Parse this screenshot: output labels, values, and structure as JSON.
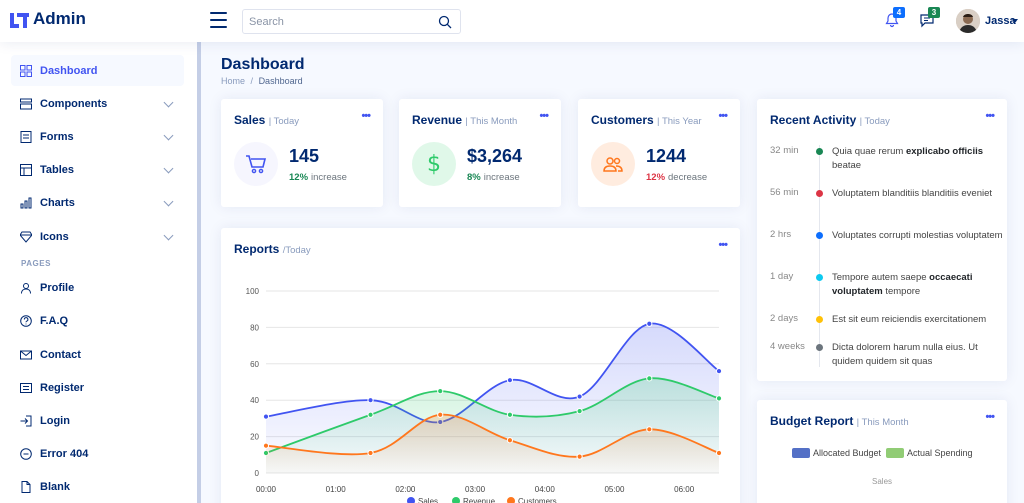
{
  "header": {
    "logo_text": "Admin",
    "search_placeholder": "Search",
    "notifications_count": "4",
    "messages_count": "3",
    "user_name": "Jassa"
  },
  "sidebar": {
    "items": [
      {
        "label": "Dashboard",
        "icon": "grid-icon",
        "active": true
      },
      {
        "label": "Components",
        "icon": "menu-icon",
        "expandable": true
      },
      {
        "label": "Forms",
        "icon": "journal-icon",
        "expandable": true
      },
      {
        "label": "Tables",
        "icon": "layout-icon",
        "expandable": true
      },
      {
        "label": "Charts",
        "icon": "bar-chart-icon",
        "expandable": true
      },
      {
        "label": "Icons",
        "icon": "gem-icon",
        "expandable": true
      }
    ],
    "pages_heading": "PAGES",
    "pages": [
      {
        "label": "Profile",
        "icon": "person-icon"
      },
      {
        "label": "F.A.Q",
        "icon": "question-icon"
      },
      {
        "label": "Contact",
        "icon": "envelope-icon"
      },
      {
        "label": "Register",
        "icon": "card-list-icon"
      },
      {
        "label": "Login",
        "icon": "login-icon"
      },
      {
        "label": "Error 404",
        "icon": "dash-circle-icon"
      },
      {
        "label": "Blank",
        "icon": "file-icon"
      }
    ]
  },
  "page": {
    "title": "Dashboard",
    "breadcrumb_home": "Home",
    "breadcrumb_sep": "/",
    "breadcrumb_current": "Dashboard"
  },
  "cards": {
    "sales": {
      "title": "Sales",
      "period": "| Today",
      "value": "145",
      "pct": "12%",
      "label": "increase",
      "color": "#4154f1"
    },
    "revenue": {
      "title": "Revenue",
      "period": "| This Month",
      "value": "$3,264",
      "pct": "8%",
      "label": "increase",
      "color": "#2eca6a"
    },
    "customers": {
      "title": "Customers",
      "period": "| This Year",
      "value": "1244",
      "pct": "12%",
      "label": "decrease",
      "color": "#ff771d"
    }
  },
  "more_dots": "•••",
  "reports": {
    "title": "Reports",
    "period": "/Today"
  },
  "recent_activity": {
    "title": "Recent Activity",
    "period": "| Today",
    "items": [
      {
        "time": "32 min",
        "text": "Quia quae rerum ",
        "bold": "explicabo officiis",
        "tail": " beatae",
        "color": "#198754"
      },
      {
        "time": "56 min",
        "text": "Voluptatem blanditiis blanditiis eveniet",
        "bold": "",
        "tail": "",
        "color": "#dc3545"
      },
      {
        "time": "2 hrs",
        "text": "Voluptates corrupti molestias voluptatem",
        "bold": "",
        "tail": "",
        "color": "#0d6efd"
      },
      {
        "time": "1 day",
        "text": "Tempore autem saepe ",
        "bold": "occaecati voluptatem",
        "tail": " tempore",
        "color": "#0dcaf0"
      },
      {
        "time": "2 days",
        "text": "Est sit eum reiciendis exercitationem",
        "bold": "",
        "tail": "",
        "color": "#ffc107"
      },
      {
        "time": "4 weeks",
        "text": "Dicta dolorem harum nulla eius. Ut quidem quidem sit quas",
        "bold": "",
        "tail": "",
        "color": "#6c757d"
      }
    ]
  },
  "budget": {
    "title": "Budget Report",
    "period": "| This Month",
    "legend": [
      {
        "name": "Allocated Budget",
        "color": "#5470c6"
      },
      {
        "name": "Actual Spending",
        "color": "#91cc75"
      }
    ],
    "radar_label": "Sales"
  },
  "chart_data": {
    "type": "area",
    "x": [
      "00:00",
      "01:00",
      "02:00",
      "03:00",
      "04:00",
      "05:00",
      "06:00"
    ],
    "x_values": [
      0,
      1,
      2,
      2.5,
      3.5,
      4.5,
      5,
      6,
      6.5
    ],
    "ylim": [
      0,
      100
    ],
    "yticks": [
      0,
      20,
      40,
      60,
      80,
      100
    ],
    "grid": true,
    "legend_position": "bottom",
    "series": [
      {
        "name": "Sales",
        "color": "#4154f1",
        "points": [
          [
            0,
            31
          ],
          [
            1.5,
            40
          ],
          [
            2.5,
            28
          ],
          [
            3.5,
            51
          ],
          [
            4.5,
            42
          ],
          [
            5.5,
            82
          ],
          [
            6.5,
            56
          ]
        ]
      },
      {
        "name": "Revenue",
        "color": "#2eca6a",
        "points": [
          [
            0,
            11
          ],
          [
            1.5,
            32
          ],
          [
            2.5,
            45
          ],
          [
            3.5,
            32
          ],
          [
            4.5,
            34
          ],
          [
            5.5,
            52
          ],
          [
            6.5,
            41
          ]
        ]
      },
      {
        "name": "Customers",
        "color": "#ff771d",
        "points": [
          [
            0,
            15
          ],
          [
            1.5,
            11
          ],
          [
            2.5,
            32
          ],
          [
            3.5,
            18
          ],
          [
            4.5,
            9
          ],
          [
            5.5,
            24
          ],
          [
            6.5,
            11
          ]
        ]
      }
    ]
  }
}
